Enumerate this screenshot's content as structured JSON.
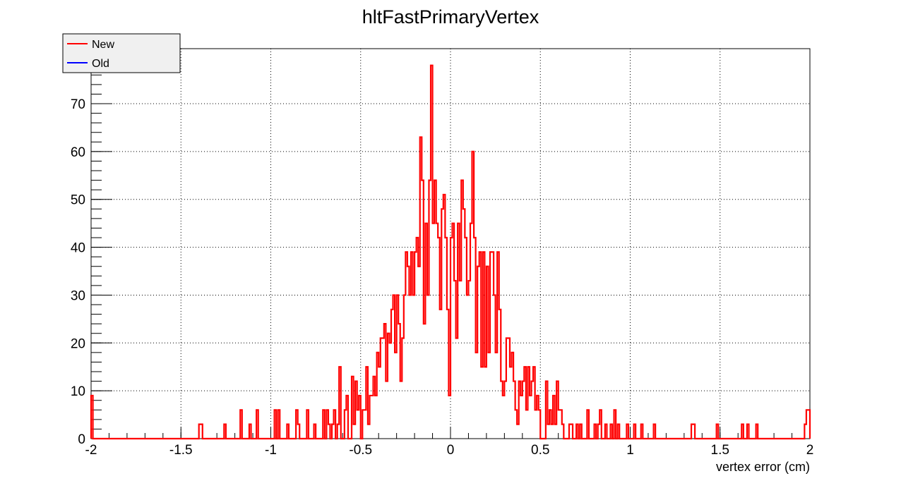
{
  "chart_data": {
    "type": "line",
    "style": "histogram-step",
    "title": "hltFastPrimaryVertex",
    "xlabel": "vertex error (cm)",
    "ylabel": "",
    "xlim": [
      -2,
      2
    ],
    "ylim": [
      0,
      81.5
    ],
    "grid": true,
    "legend_position": "top-left",
    "x_ticks": [
      "-2",
      "-1.5",
      "-1",
      "-0.5",
      "0",
      "0.5",
      "1",
      "1.5",
      "2"
    ],
    "y_ticks": [
      "0",
      "10",
      "20",
      "30",
      "40",
      "50",
      "60",
      "70"
    ],
    "bin_width": 0.01,
    "series": [
      {
        "name": "New",
        "color": "#ff0000",
        "bins": [
          {
            "x": -1.995,
            "y": 9
          },
          {
            "x": -1.395,
            "y": 3
          },
          {
            "x": -1.385,
            "y": 3
          },
          {
            "x": -1.255,
            "y": 3
          },
          {
            "x": -1.165,
            "y": 6
          },
          {
            "x": -1.115,
            "y": 3
          },
          {
            "x": -1.075,
            "y": 6
          },
          {
            "x": -0.975,
            "y": 6
          },
          {
            "x": -0.955,
            "y": 6
          },
          {
            "x": -0.905,
            "y": 3
          },
          {
            "x": -0.855,
            "y": 6
          },
          {
            "x": -0.845,
            "y": 3
          },
          {
            "x": -0.795,
            "y": 6
          },
          {
            "x": -0.755,
            "y": 3
          },
          {
            "x": -0.705,
            "y": 6
          },
          {
            "x": -0.685,
            "y": 6
          },
          {
            "x": -0.675,
            "y": 3
          },
          {
            "x": -0.655,
            "y": 3
          },
          {
            "x": -0.645,
            "y": 6
          },
          {
            "x": -0.625,
            "y": 3
          },
          {
            "x": -0.615,
            "y": 15
          },
          {
            "x": -0.585,
            "y": 6
          },
          {
            "x": -0.575,
            "y": 9
          },
          {
            "x": -0.545,
            "y": 13
          },
          {
            "x": -0.535,
            "y": 3
          },
          {
            "x": -0.525,
            "y": 12
          },
          {
            "x": -0.515,
            "y": 6
          },
          {
            "x": -0.505,
            "y": 9
          },
          {
            "x": -0.485,
            "y": 6
          },
          {
            "x": -0.475,
            "y": 6
          },
          {
            "x": -0.465,
            "y": 15
          },
          {
            "x": -0.455,
            "y": 3
          },
          {
            "x": -0.445,
            "y": 9
          },
          {
            "x": -0.435,
            "y": 9
          },
          {
            "x": -0.425,
            "y": 13
          },
          {
            "x": -0.415,
            "y": 9
          },
          {
            "x": -0.405,
            "y": 18
          },
          {
            "x": -0.395,
            "y": 15
          },
          {
            "x": -0.385,
            "y": 21
          },
          {
            "x": -0.375,
            "y": 21
          },
          {
            "x": -0.365,
            "y": 24
          },
          {
            "x": -0.355,
            "y": 12
          },
          {
            "x": -0.345,
            "y": 22
          },
          {
            "x": -0.335,
            "y": 20
          },
          {
            "x": -0.325,
            "y": 27
          },
          {
            "x": -0.315,
            "y": 30
          },
          {
            "x": -0.305,
            "y": 18
          },
          {
            "x": -0.295,
            "y": 30
          },
          {
            "x": -0.285,
            "y": 24
          },
          {
            "x": -0.275,
            "y": 12
          },
          {
            "x": -0.265,
            "y": 21
          },
          {
            "x": -0.255,
            "y": 30
          },
          {
            "x": -0.245,
            "y": 39
          },
          {
            "x": -0.235,
            "y": 36
          },
          {
            "x": -0.225,
            "y": 30
          },
          {
            "x": -0.215,
            "y": 39
          },
          {
            "x": -0.205,
            "y": 30
          },
          {
            "x": -0.195,
            "y": 39
          },
          {
            "x": -0.185,
            "y": 42
          },
          {
            "x": -0.175,
            "y": 36
          },
          {
            "x": -0.165,
            "y": 63
          },
          {
            "x": -0.155,
            "y": 54
          },
          {
            "x": -0.145,
            "y": 24
          },
          {
            "x": -0.135,
            "y": 45
          },
          {
            "x": -0.125,
            "y": 30
          },
          {
            "x": -0.115,
            "y": 54
          },
          {
            "x": -0.105,
            "y": 78
          },
          {
            "x": -0.095,
            "y": 45
          },
          {
            "x": -0.085,
            "y": 54
          },
          {
            "x": -0.075,
            "y": 45
          },
          {
            "x": -0.065,
            "y": 42
          },
          {
            "x": -0.055,
            "y": 27
          },
          {
            "x": -0.045,
            "y": 48
          },
          {
            "x": -0.035,
            "y": 51
          },
          {
            "x": -0.025,
            "y": 42
          },
          {
            "x": -0.015,
            "y": 27
          },
          {
            "x": -0.005,
            "y": 9
          },
          {
            "x": 0.005,
            "y": 42
          },
          {
            "x": 0.015,
            "y": 45
          },
          {
            "x": 0.025,
            "y": 33
          },
          {
            "x": 0.035,
            "y": 21
          },
          {
            "x": 0.045,
            "y": 45
          },
          {
            "x": 0.055,
            "y": 33
          },
          {
            "x": 0.065,
            "y": 54
          },
          {
            "x": 0.075,
            "y": 48
          },
          {
            "x": 0.085,
            "y": 42
          },
          {
            "x": 0.095,
            "y": 30
          },
          {
            "x": 0.105,
            "y": 33
          },
          {
            "x": 0.115,
            "y": 45
          },
          {
            "x": 0.125,
            "y": 60
          },
          {
            "x": 0.135,
            "y": 42
          },
          {
            "x": 0.145,
            "y": 18
          },
          {
            "x": 0.155,
            "y": 36
          },
          {
            "x": 0.165,
            "y": 39
          },
          {
            "x": 0.175,
            "y": 15
          },
          {
            "x": 0.185,
            "y": 39
          },
          {
            "x": 0.195,
            "y": 15
          },
          {
            "x": 0.205,
            "y": 36
          },
          {
            "x": 0.215,
            "y": 18
          },
          {
            "x": 0.225,
            "y": 39
          },
          {
            "x": 0.235,
            "y": 39
          },
          {
            "x": 0.245,
            "y": 30
          },
          {
            "x": 0.255,
            "y": 18
          },
          {
            "x": 0.265,
            "y": 39
          },
          {
            "x": 0.275,
            "y": 27
          },
          {
            "x": 0.285,
            "y": 12
          },
          {
            "x": 0.295,
            "y": 9
          },
          {
            "x": 0.305,
            "y": 12
          },
          {
            "x": 0.315,
            "y": 21
          },
          {
            "x": 0.325,
            "y": 21
          },
          {
            "x": 0.335,
            "y": 15
          },
          {
            "x": 0.345,
            "y": 18
          },
          {
            "x": 0.355,
            "y": 12
          },
          {
            "x": 0.365,
            "y": 6
          },
          {
            "x": 0.375,
            "y": 3
          },
          {
            "x": 0.385,
            "y": 12
          },
          {
            "x": 0.395,
            "y": 9
          },
          {
            "x": 0.405,
            "y": 12
          },
          {
            "x": 0.415,
            "y": 15
          },
          {
            "x": 0.425,
            "y": 6
          },
          {
            "x": 0.435,
            "y": 15
          },
          {
            "x": 0.445,
            "y": 9
          },
          {
            "x": 0.455,
            "y": 12
          },
          {
            "x": 0.465,
            "y": 15
          },
          {
            "x": 0.475,
            "y": 6
          },
          {
            "x": 0.485,
            "y": 9
          },
          {
            "x": 0.495,
            "y": 6
          },
          {
            "x": 0.535,
            "y": 12
          },
          {
            "x": 0.545,
            "y": 3
          },
          {
            "x": 0.555,
            "y": 6
          },
          {
            "x": 0.565,
            "y": 3
          },
          {
            "x": 0.575,
            "y": 9
          },
          {
            "x": 0.585,
            "y": 3
          },
          {
            "x": 0.595,
            "y": 12
          },
          {
            "x": 0.605,
            "y": 6
          },
          {
            "x": 0.615,
            "y": 6
          },
          {
            "x": 0.625,
            "y": 3
          },
          {
            "x": 0.665,
            "y": 3
          },
          {
            "x": 0.675,
            "y": 3
          },
          {
            "x": 0.705,
            "y": 3
          },
          {
            "x": 0.725,
            "y": 3
          },
          {
            "x": 0.765,
            "y": 6
          },
          {
            "x": 0.805,
            "y": 3
          },
          {
            "x": 0.825,
            "y": 3
          },
          {
            "x": 0.835,
            "y": 6
          },
          {
            "x": 0.865,
            "y": 3
          },
          {
            "x": 0.895,
            "y": 3
          },
          {
            "x": 0.915,
            "y": 6
          },
          {
            "x": 0.935,
            "y": 3
          },
          {
            "x": 0.985,
            "y": 3
          },
          {
            "x": 1.025,
            "y": 3
          },
          {
            "x": 1.065,
            "y": 3
          },
          {
            "x": 1.135,
            "y": 3
          },
          {
            "x": 1.345,
            "y": 3
          },
          {
            "x": 1.355,
            "y": 3
          },
          {
            "x": 1.485,
            "y": 3
          },
          {
            "x": 1.625,
            "y": 3
          },
          {
            "x": 1.655,
            "y": 3
          },
          {
            "x": 1.705,
            "y": 3
          },
          {
            "x": 1.975,
            "y": 3
          },
          {
            "x": 1.985,
            "y": 6
          },
          {
            "x": 1.995,
            "y": 6
          }
        ]
      },
      {
        "name": "Old",
        "color": "#0000ff",
        "bins": []
      }
    ]
  }
}
